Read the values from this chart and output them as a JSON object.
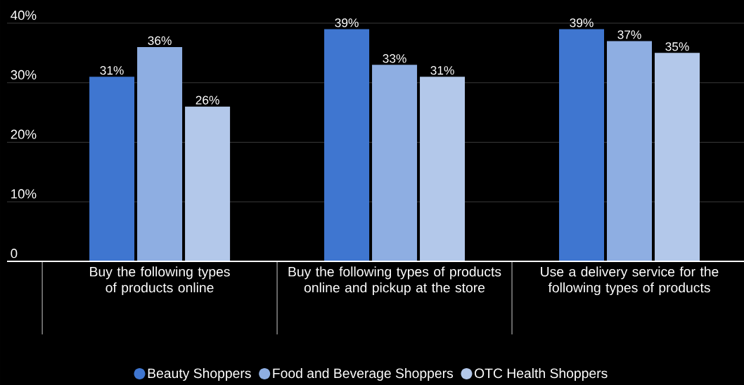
{
  "chart_data": {
    "type": "bar",
    "categories": [
      "Buy the following types of products online",
      "Buy the following types of products online and pickup at the store",
      "Use a delivery service for the following types of products"
    ],
    "series": [
      {
        "name": "Beauty Shoppers",
        "color": "#3f76d0",
        "values": [
          31,
          39,
          39
        ],
        "value_labels": [
          "31%",
          "39%",
          "39%"
        ]
      },
      {
        "name": "Food and Beverage Shoppers",
        "color": "#8eaee2",
        "values": [
          36,
          33,
          37
        ],
        "value_labels": [
          "36%",
          "33%",
          "37%"
        ]
      },
      {
        "name": "OTC Health Shoppers",
        "color": "#b3c8ea",
        "values": [
          26,
          31,
          35
        ],
        "value_labels": [
          "26%",
          "31%",
          "35%"
        ]
      }
    ],
    "ylim": [
      0,
      40
    ],
    "yticks": [
      {
        "value": 0,
        "label": "0"
      },
      {
        "value": 10,
        "label": "10%"
      },
      {
        "value": 20,
        "label": "20%"
      },
      {
        "value": 30,
        "label": "30%"
      },
      {
        "value": 40,
        "label": "40%"
      }
    ],
    "grid": "y",
    "legend": "bottom"
  }
}
